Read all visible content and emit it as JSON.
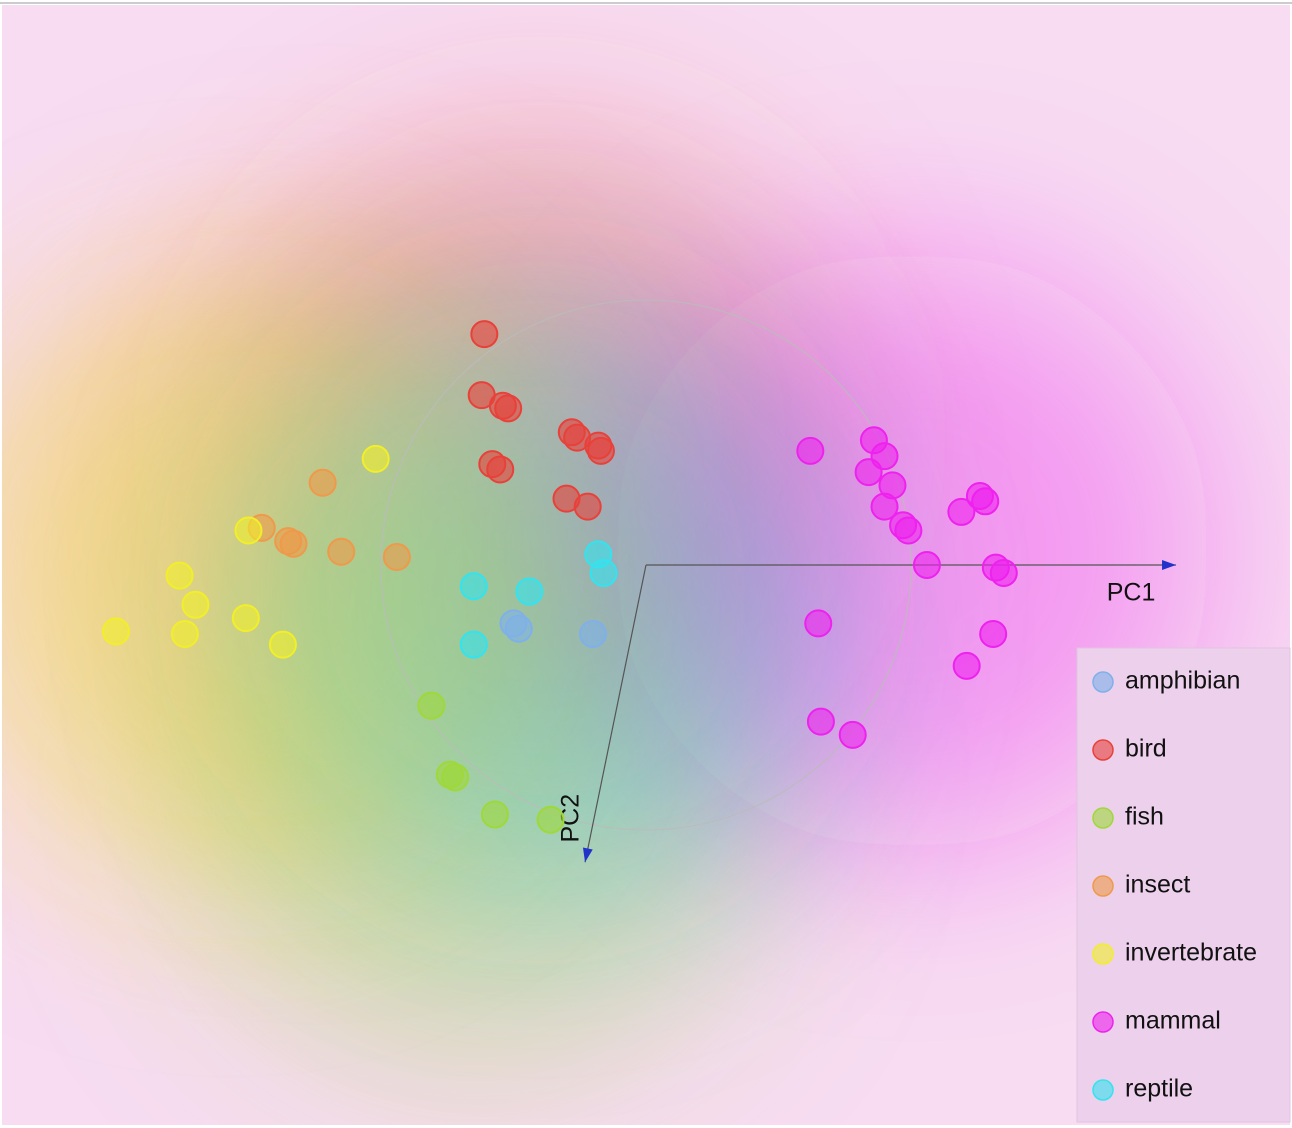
{
  "chart_data": {
    "type": "scatter",
    "xlim": [
      -2.43,
      2.43
    ],
    "ylim": [
      -2.11,
      2.11
    ],
    "series": [
      {
        "name": "amphibian",
        "color": "#7fb0ea",
        "x": [
          -0.5,
          -0.48,
          -0.2
        ],
        "y": [
          -0.22,
          -0.24,
          -0.26
        ]
      },
      {
        "name": "bird",
        "color": "#e8413a",
        "x": [
          -0.61,
          -0.62,
          -0.54,
          -0.52,
          -0.28,
          -0.26,
          -0.18,
          -0.17,
          -0.58,
          -0.55,
          -0.3,
          -0.22
        ],
        "y": [
          0.87,
          0.64,
          0.6,
          0.59,
          0.5,
          0.48,
          0.45,
          0.43,
          0.38,
          0.36,
          0.25,
          0.22
        ]
      },
      {
        "name": "fish",
        "color": "#9fd83a",
        "x": [
          -0.81,
          -0.74,
          -0.72,
          -0.57,
          -0.36
        ],
        "y": [
          -0.53,
          -0.79,
          -0.8,
          -0.94,
          -0.96
        ]
      },
      {
        "name": "insect",
        "color": "#ee9a4a",
        "x": [
          -1.22,
          -1.45,
          -1.35,
          -1.33,
          -1.15,
          -0.94
        ],
        "y": [
          0.31,
          0.14,
          0.09,
          0.08,
          0.05,
          0.03
        ]
      },
      {
        "name": "invertebrate",
        "color": "#f2ee2a",
        "x": [
          -1.02,
          -1.5,
          -1.76,
          -1.7,
          -2.0,
          -1.74,
          -1.51,
          -1.37
        ],
        "y": [
          0.4,
          0.13,
          -0.04,
          -0.15,
          -0.25,
          -0.26,
          -0.2,
          -0.3
        ]
      },
      {
        "name": "mammal",
        "color": "#ee22ee",
        "x": [
          0.62,
          0.86,
          0.9,
          0.84,
          0.93,
          0.9,
          0.97,
          0.99,
          1.26,
          1.28,
          1.19,
          1.06,
          1.32,
          1.35,
          0.65,
          1.31,
          1.21,
          0.66,
          0.78
        ],
        "y": [
          0.43,
          0.47,
          0.41,
          0.35,
          0.3,
          0.22,
          0.15,
          0.13,
          0.26,
          0.24,
          0.2,
          0.0,
          -0.01,
          -0.03,
          -0.22,
          -0.26,
          -0.38,
          -0.59,
          -0.64
        ]
      },
      {
        "name": "reptile",
        "color": "#33e3ef",
        "x": [
          -0.18,
          -0.16,
          -0.65,
          -0.44,
          -0.65
        ],
        "y": [
          0.04,
          -0.03,
          -0.08,
          -0.1,
          -0.3
        ]
      }
    ],
    "anchors": [
      {
        "label": "PC1",
        "x": 2.0,
        "y": 0
      },
      {
        "label": "PC2",
        "x": -0.23,
        "y": -1.12
      }
    ]
  }
}
